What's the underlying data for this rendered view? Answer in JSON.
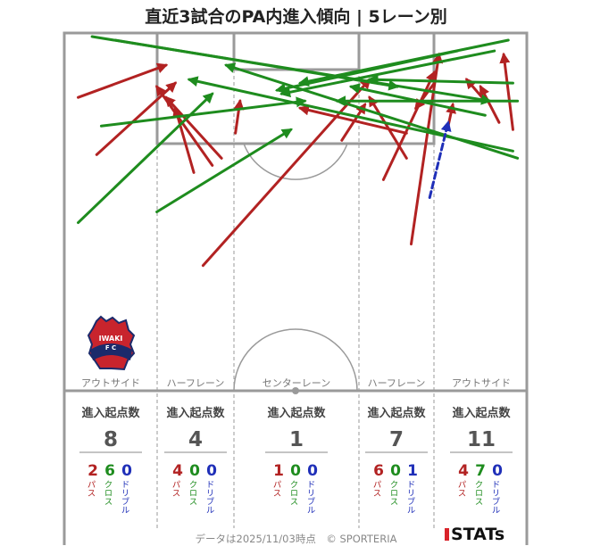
{
  "title": "直近3試合のPA内進入傾向 | 5レーン別",
  "colors": {
    "pass": "#b22222",
    "cross": "#1e8c1e",
    "dribble": "#1f2fb8",
    "pitch_line": "#9a9a9a"
  },
  "team_badge": {
    "text_top": "IWAKI",
    "text_bottom": "F C"
  },
  "lanes": [
    {
      "name": "アウトサイド",
      "header": "進入起点数",
      "total": "8",
      "counts": [
        {
          "value": "2",
          "label": "パス",
          "type": "pass"
        },
        {
          "value": "6",
          "label": "クロス",
          "type": "cross"
        },
        {
          "value": "0",
          "label": "ドリブル",
          "type": "dribble"
        }
      ]
    },
    {
      "name": "ハーフレーン",
      "header": "進入起点数",
      "total": "4",
      "counts": [
        {
          "value": "4",
          "label": "パス",
          "type": "pass"
        },
        {
          "value": "0",
          "label": "クロス",
          "type": "cross"
        },
        {
          "value": "0",
          "label": "ドリブル",
          "type": "dribble"
        }
      ]
    },
    {
      "name": "センターレーン",
      "header": "進入起点数",
      "total": "1",
      "counts": [
        {
          "value": "1",
          "label": "パス",
          "type": "pass"
        },
        {
          "value": "0",
          "label": "クロス",
          "type": "cross"
        },
        {
          "value": "0",
          "label": "ドリブル",
          "type": "dribble"
        }
      ]
    },
    {
      "name": "ハーフレーン",
      "header": "進入起点数",
      "total": "7",
      "counts": [
        {
          "value": "6",
          "label": "パス",
          "type": "pass"
        },
        {
          "value": "0",
          "label": "クロス",
          "type": "cross"
        },
        {
          "value": "1",
          "label": "ドリブル",
          "type": "dribble"
        }
      ]
    },
    {
      "name": "アウトサイド",
      "header": "進入起点数",
      "total": "11",
      "counts": [
        {
          "value": "4",
          "label": "パス",
          "type": "pass"
        },
        {
          "value": "7",
          "label": "クロス",
          "type": "cross"
        },
        {
          "value": "0",
          "label": "ドリブル",
          "type": "dribble"
        }
      ]
    }
  ],
  "footer": "データは2025/11/03時点　© SPORTERIA",
  "brand": "STATs",
  "chart_data": {
    "type": "scatter",
    "units": "pitch-fraction: x = 0..1 across the attacking half (left to right), y = 0..1 down from the goal line",
    "series": [
      {
        "name": "パス",
        "type": "pass",
        "arrows": [
          {
            "from": [
              0.03,
              0.18
            ],
            "to": [
              0.22,
              0.09
            ]
          },
          {
            "from": [
              0.07,
              0.34
            ],
            "to": [
              0.24,
              0.14
            ]
          },
          {
            "from": [
              0.28,
              0.39
            ],
            "to": [
              0.24,
              0.21
            ]
          },
          {
            "from": [
              0.32,
              0.37
            ],
            "to": [
              0.2,
              0.15
            ]
          },
          {
            "from": [
              0.34,
              0.35
            ],
            "to": [
              0.22,
              0.18
            ]
          },
          {
            "from": [
              0.37,
              0.28
            ],
            "to": [
              0.38,
              0.19
            ]
          },
          {
            "from": [
              0.3,
              0.65
            ],
            "to": [
              0.66,
              0.13
            ]
          },
          {
            "from": [
              0.74,
              0.28
            ],
            "to": [
              0.51,
              0.21
            ]
          },
          {
            "from": [
              0.6,
              0.3
            ],
            "to": [
              0.65,
              0.2
            ]
          },
          {
            "from": [
              0.69,
              0.41
            ],
            "to": [
              0.8,
              0.11
            ]
          },
          {
            "from": [
              0.75,
              0.59
            ],
            "to": [
              0.81,
              0.06
            ]
          },
          {
            "from": [
              0.74,
              0.35
            ],
            "to": [
              0.66,
              0.18
            ]
          },
          {
            "from": [
              0.8,
              0.14
            ],
            "to": [
              0.76,
              0.21
            ]
          },
          {
            "from": [
              0.83,
              0.26
            ],
            "to": [
              0.84,
              0.2
            ]
          },
          {
            "from": [
              0.97,
              0.27
            ],
            "to": [
              0.95,
              0.06
            ]
          },
          {
            "from": [
              0.94,
              0.25
            ],
            "to": [
              0.9,
              0.15
            ]
          },
          {
            "from": [
              0.91,
              0.19
            ],
            "to": [
              0.87,
              0.13
            ]
          }
        ]
      },
      {
        "name": "クロス",
        "type": "cross",
        "arrows": [
          {
            "from": [
              0.06,
              0.01
            ],
            "to": [
              0.92,
              0.19
            ]
          },
          {
            "from": [
              0.11,
              0.02
            ],
            "to": [
              0.72,
              0.15
            ]
          },
          {
            "from": [
              0.03,
              0.53
            ],
            "to": [
              0.32,
              0.17
            ]
          },
          {
            "from": [
              0.2,
              0.5
            ],
            "to": [
              0.49,
              0.27
            ]
          },
          {
            "from": [
              0.08,
              0.26
            ],
            "to": [
              0.52,
              0.19
            ]
          },
          {
            "from": [
              0.98,
              0.35
            ],
            "to": [
              0.35,
              0.09
            ]
          },
          {
            "from": [
              0.97,
              0.14
            ],
            "to": [
              0.66,
              0.13
            ]
          },
          {
            "from": [
              0.85,
              0.05
            ],
            "to": [
              0.46,
              0.16
            ]
          },
          {
            "from": [
              0.96,
              0.02
            ],
            "to": [
              0.51,
              0.14
            ]
          },
          {
            "from": [
              0.97,
              0.33
            ],
            "to": [
              0.27,
              0.13
            ]
          },
          {
            "from": [
              0.98,
              0.19
            ],
            "to": [
              0.59,
              0.19
            ]
          },
          {
            "from": [
              0.93,
              0.05
            ],
            "to": [
              0.47,
              0.17
            ]
          },
          {
            "from": [
              0.91,
              0.23
            ],
            "to": [
              0.62,
              0.15
            ]
          }
        ]
      },
      {
        "name": "ドリブル",
        "type": "dribble",
        "arrows": [
          {
            "from": [
              0.79,
              0.46
            ],
            "to": [
              0.83,
              0.25
            ]
          }
        ]
      }
    ]
  }
}
